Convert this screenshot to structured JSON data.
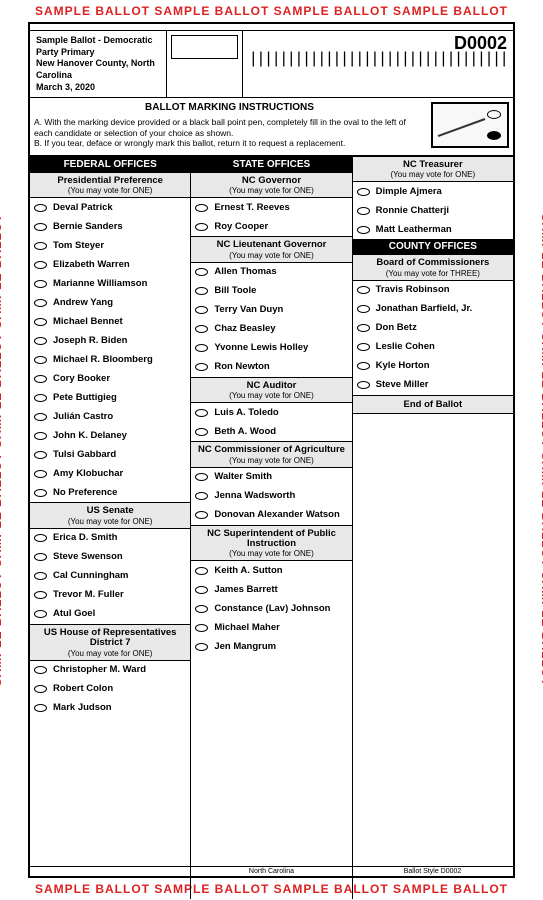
{
  "watermark": "SAMPLE BALLOT    SAMPLE BALLOT    SAMPLE BALLOT    SAMPLE BALLOT",
  "header": {
    "line1": "Sample Ballot - Democratic Party Primary",
    "line2": "New Hanover County, North Carolina",
    "line3": "March 3, 2020",
    "code": "D0002",
    "barcode": "||||||||||||||||||||||||||||||||||"
  },
  "instructions": {
    "title": "BALLOT MARKING INSTRUCTIONS",
    "a": "A. With the marking device provided or a black ball point pen, completely fill in the oval to the left of each candidate or selection of your choice as shown.",
    "b": "B. If you tear, deface or wrongly mark this ballot, return it to request a replacement."
  },
  "sections": {
    "federal": "FEDERAL OFFICES",
    "state": "STATE OFFICES",
    "county": "COUNTY OFFICES"
  },
  "races": {
    "pres": {
      "title": "Presidential Preference",
      "sub": "(You may vote for ONE)",
      "cands": [
        "Deval Patrick",
        "Bernie Sanders",
        "Tom Steyer",
        "Elizabeth Warren",
        "Marianne Williamson",
        "Andrew Yang",
        "Michael Bennet",
        "Joseph R. Biden",
        "Michael R. Bloomberg",
        "Cory Booker",
        "Pete Buttigieg",
        "Julián Castro",
        "John K. Delaney",
        "Tulsi Gabbard",
        "Amy Klobuchar",
        "No Preference"
      ]
    },
    "senate": {
      "title": "US Senate",
      "sub": "(You may vote for ONE)",
      "cands": [
        "Erica D. Smith",
        "Steve Swenson",
        "Cal Cunningham",
        "Trevor M. Fuller",
        "Atul Goel"
      ]
    },
    "house": {
      "title": "US House of Representatives District 7",
      "sub": "(You may vote for ONE)",
      "cands": [
        "Christopher M. Ward",
        "Robert Colon",
        "Mark Judson"
      ]
    },
    "gov": {
      "title": "NC Governor",
      "sub": "(You may vote for ONE)",
      "cands": [
        "Ernest T. Reeves",
        "Roy Cooper"
      ]
    },
    "ltgov": {
      "title": "NC Lieutenant Governor",
      "sub": "(You may vote for ONE)",
      "cands": [
        "Allen Thomas",
        "Bill Toole",
        "Terry Van Duyn",
        "Chaz Beasley",
        "Yvonne Lewis Holley",
        "Ron Newton"
      ]
    },
    "auditor": {
      "title": "NC Auditor",
      "sub": "(You may vote for ONE)",
      "cands": [
        "Luis A. Toledo",
        "Beth A. Wood"
      ]
    },
    "ag": {
      "title": "NC Commissioner of Agriculture",
      "sub": "(You may vote for ONE)",
      "cands": [
        "Walter Smith",
        "Jenna Wadsworth",
        "Donovan Alexander Watson"
      ]
    },
    "spi": {
      "title": "NC Superintendent of Public Instruction",
      "sub": "(You may vote for ONE)",
      "cands": [
        "Keith A. Sutton",
        "James Barrett",
        "Constance (Lav) Johnson",
        "Michael Maher",
        "Jen Mangrum"
      ]
    },
    "treas": {
      "title": "NC Treasurer",
      "sub": "(You may vote for ONE)",
      "cands": [
        "Dimple Ajmera",
        "Ronnie Chatterji",
        "Matt Leatherman"
      ]
    },
    "boc": {
      "title": "Board of Commissioners",
      "sub": "(You may vote for THREE)",
      "cands": [
        "Travis Robinson",
        "Jonathan Barfield, Jr.",
        "Don Betz",
        "Leslie Cohen",
        "Kyle Horton",
        "Steve Miller"
      ]
    }
  },
  "endOfBallot": "End of Ballot",
  "footer": {
    "left": "",
    "mid": "North Carolina",
    "right": "Ballot Style D0002"
  }
}
